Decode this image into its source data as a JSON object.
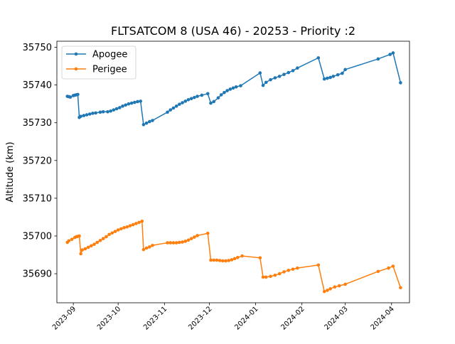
{
  "chart_data": {
    "type": "line",
    "title": "FLTSATCOM 8 (USA 46) - 20253 - Priority :2",
    "xlabel": "",
    "ylabel": "Altitude (km)",
    "x_axis": "date",
    "xlim": [
      "2023-08-21",
      "2024-04-13"
    ],
    "ylim": [
      35682.3,
      35751.6
    ],
    "x_ticks": [
      "2023-09-01",
      "2023-10-01",
      "2023-11-01",
      "2023-12-01",
      "2024-01-01",
      "2024-02-01",
      "2024-03-01",
      "2024-04-01"
    ],
    "x_tick_labels": [
      "2023-09",
      "2023-10",
      "2023-11",
      "2023-12",
      "2024-01",
      "2024-02",
      "2024-03",
      "2024-04"
    ],
    "y_ticks": [
      35690,
      35700,
      35710,
      35720,
      35730,
      35740,
      35750
    ],
    "y_tick_labels": [
      "35690",
      "35700",
      "35710",
      "35720",
      "35730",
      "35740",
      "35750"
    ],
    "legend_position": "upper-left",
    "grid": false,
    "series": [
      {
        "name": "Apogee",
        "color": "#1f77b4",
        "points": [
          [
            "2023-08-28",
            35737.0
          ],
          [
            "2023-08-29",
            35736.9
          ],
          [
            "2023-08-30",
            35736.8
          ],
          [
            "2023-09-01",
            35737.2
          ],
          [
            "2023-09-02",
            35737.3
          ],
          [
            "2023-09-03",
            35737.4
          ],
          [
            "2023-09-04",
            35737.5
          ],
          [
            "2023-09-05",
            35731.4
          ],
          [
            "2023-09-06",
            35731.7
          ],
          [
            "2023-09-08",
            35731.9
          ],
          [
            "2023-09-10",
            35732.1
          ],
          [
            "2023-09-12",
            35732.3
          ],
          [
            "2023-09-14",
            35732.5
          ],
          [
            "2023-09-16",
            35732.6
          ],
          [
            "2023-09-19",
            35732.8
          ],
          [
            "2023-09-21",
            35732.9
          ],
          [
            "2023-09-24",
            35732.9
          ],
          [
            "2023-09-26",
            35733.1
          ],
          [
            "2023-09-28",
            35733.4
          ],
          [
            "2023-09-30",
            35733.7
          ],
          [
            "2023-10-02",
            35734.0
          ],
          [
            "2023-10-04",
            35734.4
          ],
          [
            "2023-10-06",
            35734.7
          ],
          [
            "2023-10-08",
            35735.0
          ],
          [
            "2023-10-10",
            35735.2
          ],
          [
            "2023-10-12",
            35735.4
          ],
          [
            "2023-10-14",
            35735.6
          ],
          [
            "2023-10-16",
            35735.7
          ],
          [
            "2023-10-18",
            35729.5
          ],
          [
            "2023-10-20",
            35729.9
          ],
          [
            "2023-10-22",
            35730.3
          ],
          [
            "2023-10-24",
            35730.6
          ],
          [
            "2023-11-03",
            35732.8
          ],
          [
            "2023-11-05",
            35733.4
          ],
          [
            "2023-11-07",
            35733.9
          ],
          [
            "2023-11-09",
            35734.4
          ],
          [
            "2023-11-11",
            35734.9
          ],
          [
            "2023-11-13",
            35735.3
          ],
          [
            "2023-11-15",
            35735.7
          ],
          [
            "2023-11-17",
            35736.1
          ],
          [
            "2023-11-19",
            35736.4
          ],
          [
            "2023-11-21",
            35736.7
          ],
          [
            "2023-11-23",
            35737.0
          ],
          [
            "2023-11-26",
            35737.3
          ],
          [
            "2023-11-30",
            35737.7
          ],
          [
            "2023-12-02",
            35735.2
          ],
          [
            "2023-12-04",
            35735.6
          ],
          [
            "2023-12-07",
            35736.6
          ],
          [
            "2023-12-09",
            35737.4
          ],
          [
            "2023-12-11",
            35738.0
          ],
          [
            "2023-12-13",
            35738.5
          ],
          [
            "2023-12-15",
            35738.9
          ],
          [
            "2023-12-17",
            35739.2
          ],
          [
            "2023-12-19",
            35739.5
          ],
          [
            "2023-12-22",
            35739.8
          ],
          [
            "2024-01-04",
            35743.2
          ],
          [
            "2024-01-06",
            35739.9
          ],
          [
            "2024-01-08",
            35740.7
          ],
          [
            "2024-01-11",
            35741.4
          ],
          [
            "2024-01-14",
            35741.9
          ],
          [
            "2024-01-17",
            35742.3
          ],
          [
            "2024-01-20",
            35742.8
          ],
          [
            "2024-01-23",
            35743.3
          ],
          [
            "2024-01-26",
            35743.8
          ],
          [
            "2024-01-29",
            35744.5
          ],
          [
            "2024-02-12",
            35747.2
          ],
          [
            "2024-02-16",
            35741.6
          ],
          [
            "2024-02-18",
            35741.8
          ],
          [
            "2024-02-20",
            35742.0
          ],
          [
            "2024-02-22",
            35742.3
          ],
          [
            "2024-02-25",
            35742.7
          ],
          [
            "2024-02-28",
            35743.1
          ],
          [
            "2024-03-01",
            35744.1
          ],
          [
            "2024-03-23",
            35746.9
          ],
          [
            "2024-03-31",
            35748.1
          ],
          [
            "2024-04-02",
            35748.5
          ],
          [
            "2024-04-07",
            35740.6
          ]
        ]
      },
      {
        "name": "Perigee",
        "color": "#ff7f0e",
        "points": [
          [
            "2023-08-28",
            35698.3
          ],
          [
            "2023-08-29",
            35698.7
          ],
          [
            "2023-08-31",
            35699.1
          ],
          [
            "2023-09-02",
            35699.6
          ],
          [
            "2023-09-03",
            35699.8
          ],
          [
            "2023-09-04",
            35699.9
          ],
          [
            "2023-09-05",
            35700.0
          ],
          [
            "2023-09-06",
            35695.3
          ],
          [
            "2023-09-07",
            35696.3
          ],
          [
            "2023-09-09",
            35696.6
          ],
          [
            "2023-09-11",
            35697.0
          ],
          [
            "2023-09-13",
            35697.4
          ],
          [
            "2023-09-15",
            35697.8
          ],
          [
            "2023-09-17",
            35698.3
          ],
          [
            "2023-09-19",
            35698.8
          ],
          [
            "2023-09-21",
            35699.3
          ],
          [
            "2023-09-23",
            35699.8
          ],
          [
            "2023-09-25",
            35700.4
          ],
          [
            "2023-09-27",
            35700.8
          ],
          [
            "2023-09-29",
            35701.2
          ],
          [
            "2023-10-01",
            35701.6
          ],
          [
            "2023-10-03",
            35701.9
          ],
          [
            "2023-10-05",
            35702.2
          ],
          [
            "2023-10-07",
            35702.4
          ],
          [
            "2023-10-09",
            35702.7
          ],
          [
            "2023-10-11",
            35703.0
          ],
          [
            "2023-10-13",
            35703.3
          ],
          [
            "2023-10-15",
            35703.6
          ],
          [
            "2023-10-17",
            35703.9
          ],
          [
            "2023-10-18",
            35696.4
          ],
          [
            "2023-10-20",
            35696.8
          ],
          [
            "2023-10-22",
            35697.1
          ],
          [
            "2023-10-24",
            35697.5
          ],
          [
            "2023-11-03",
            35698.2
          ],
          [
            "2023-11-05",
            35698.2
          ],
          [
            "2023-11-07",
            35698.2
          ],
          [
            "2023-11-09",
            35698.2
          ],
          [
            "2023-11-11",
            35698.3
          ],
          [
            "2023-11-13",
            35698.4
          ],
          [
            "2023-11-15",
            35698.6
          ],
          [
            "2023-11-17",
            35698.9
          ],
          [
            "2023-11-19",
            35699.3
          ],
          [
            "2023-11-21",
            35699.7
          ],
          [
            "2023-11-23",
            35700.1
          ],
          [
            "2023-11-30",
            35700.7
          ],
          [
            "2023-12-02",
            35693.6
          ],
          [
            "2023-12-04",
            35693.6
          ],
          [
            "2023-12-06",
            35693.6
          ],
          [
            "2023-12-08",
            35693.5
          ],
          [
            "2023-12-10",
            35693.4
          ],
          [
            "2023-12-12",
            35693.4
          ],
          [
            "2023-12-14",
            35693.5
          ],
          [
            "2023-12-16",
            35693.7
          ],
          [
            "2023-12-18",
            35694.0
          ],
          [
            "2023-12-20",
            35694.3
          ],
          [
            "2023-12-23",
            35694.7
          ],
          [
            "2024-01-04",
            35694.2
          ],
          [
            "2024-01-06",
            35689.1
          ],
          [
            "2024-01-08",
            35689.1
          ],
          [
            "2024-01-11",
            35689.3
          ],
          [
            "2024-01-14",
            35689.6
          ],
          [
            "2024-01-17",
            35690.0
          ],
          [
            "2024-01-20",
            35690.5
          ],
          [
            "2024-01-23",
            35690.9
          ],
          [
            "2024-01-26",
            35691.2
          ],
          [
            "2024-01-29",
            35691.5
          ],
          [
            "2024-02-12",
            35692.3
          ],
          [
            "2024-02-16",
            35685.3
          ],
          [
            "2024-02-18",
            35685.6
          ],
          [
            "2024-02-20",
            35686.0
          ],
          [
            "2024-02-23",
            35686.5
          ],
          [
            "2024-02-26",
            35686.8
          ],
          [
            "2024-03-01",
            35687.2
          ],
          [
            "2024-03-23",
            35690.6
          ],
          [
            "2024-03-30",
            35691.5
          ],
          [
            "2024-04-02",
            35692.0
          ],
          [
            "2024-04-07",
            35686.3
          ]
        ]
      }
    ]
  }
}
